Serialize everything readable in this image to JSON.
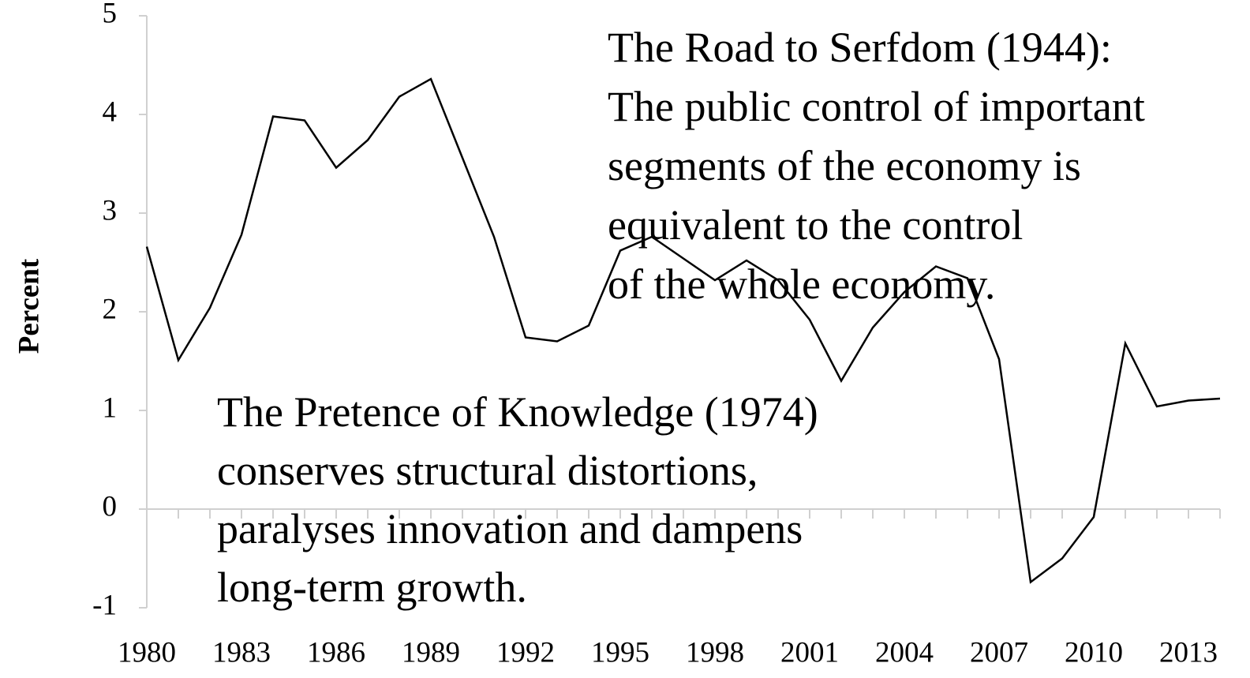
{
  "chart_data": {
    "type": "line",
    "y_label": "Percent",
    "annotations": [
      [
        "The Road to Serfdom (1944):",
        "The public control of important",
        "segments of the economy is",
        "equivalent to the control",
        "of the whole economy."
      ],
      [
        "The Pretence of Knowledge (1974)",
        "conserves structural distortions,",
        "paralyses innovation and dampens",
        "long-term growth."
      ]
    ],
    "x": [
      1980,
      1981,
      1982,
      1983,
      1984,
      1985,
      1986,
      1987,
      1988,
      1989,
      1990,
      1991,
      1992,
      1993,
      1994,
      1995,
      1996,
      1997,
      1998,
      1999,
      2000,
      2001,
      2002,
      2003,
      2004,
      2005,
      2006,
      2007,
      2008,
      2009,
      2010,
      2011,
      2012,
      2013,
      2014
    ],
    "series": [
      {
        "color": "#000000",
        "values": [
          2.66,
          1.51,
          2.04,
          2.78,
          3.98,
          3.94,
          3.46,
          3.74,
          4.18,
          4.36,
          3.56,
          2.76,
          1.74,
          1.7,
          1.86,
          2.62,
          2.76,
          2.54,
          2.32,
          2.52,
          2.32,
          1.92,
          1.3,
          1.84,
          2.2,
          2.46,
          2.34,
          1.52,
          -0.74,
          -0.5,
          -0.08,
          1.68,
          1.04,
          1.1,
          1.12
        ]
      }
    ],
    "xlim": [
      1980,
      2014
    ],
    "xticks": [
      1980,
      1983,
      1986,
      1989,
      1992,
      1995,
      1998,
      2001,
      2004,
      2007,
      2010,
      2013
    ],
    "ylim": [
      -1,
      5
    ],
    "yticks": [
      -1,
      0,
      1,
      2,
      3,
      4,
      5
    ]
  }
}
